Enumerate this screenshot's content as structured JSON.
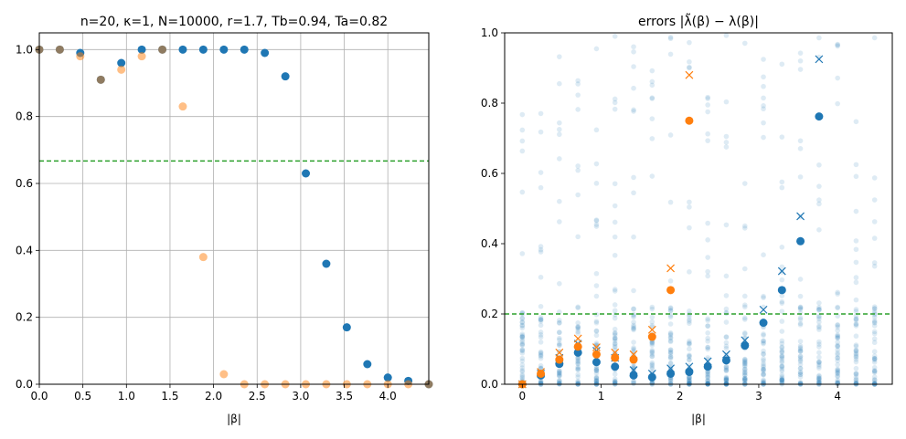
{
  "chart_data": [
    {
      "type": "scatter",
      "title": "n=20, κ=1, N=10000, r=1.7, Tb=0.94, Ta=0.82",
      "xlabel": "|β|",
      "ylabel": "",
      "xlim": [
        0,
        4.47
      ],
      "ylim": [
        0,
        1.05
      ],
      "xticks": [
        0.0,
        0.5,
        1.0,
        1.5,
        2.0,
        2.5,
        3.0,
        3.5,
        4.0
      ],
      "xtick_labels": [
        "0.0",
        "0.5",
        "1.0",
        "1.5",
        "2.0",
        "2.5",
        "3.0",
        "3.5",
        "4.0"
      ],
      "yticks": [
        0.0,
        0.2,
        0.4,
        0.6,
        0.8,
        1.0
      ],
      "ytick_labels": [
        "0.0",
        "0.2",
        "0.4",
        "0.6",
        "0.8",
        "1.0"
      ],
      "grid": true,
      "hline": {
        "y": 0.667,
        "color": "#2ca02c",
        "style": "dashed"
      },
      "series": [
        {
          "color": "#1f77b4",
          "marker": "circle",
          "x": [
            0,
            0.235,
            0.47,
            0.706,
            0.941,
            1.176,
            1.412,
            1.647,
            1.882,
            2.118,
            2.353,
            2.588,
            2.824,
            3.059,
            3.294,
            3.529,
            3.765,
            4.0,
            4.235,
            4.47
          ],
          "y": [
            1.0,
            1.0,
            0.99,
            0.91,
            0.96,
            1.0,
            1.0,
            1.0,
            1.0,
            1.0,
            1.0,
            0.99,
            0.92,
            0.63,
            0.36,
            0.17,
            0.06,
            0.02,
            0.01,
            0.0
          ]
        },
        {
          "color": "#ff7f0e",
          "marker": "circle",
          "opacity": 0.5,
          "x": [
            0,
            0.235,
            0.47,
            0.706,
            0.941,
            1.176,
            1.412,
            1.647,
            1.882,
            2.118,
            2.353,
            2.588,
            2.824,
            3.059,
            3.294,
            3.529,
            3.765,
            4.0,
            4.235,
            4.47
          ],
          "y": [
            1.0,
            1.0,
            0.98,
            0.91,
            0.94,
            0.98,
            1.0,
            0.83,
            0.38,
            0.03,
            0.0,
            0.0,
            0.0,
            0.0,
            0.0,
            0.0,
            0.0,
            0.0,
            0.0,
            0.0
          ]
        }
      ]
    },
    {
      "type": "scatter",
      "title": "errors |λ̃(β) − λ(β)|",
      "xlabel": "|β|",
      "ylabel": "",
      "xlim": [
        -0.224,
        4.694
      ],
      "ylim": [
        0,
        1.0
      ],
      "xticks": [
        0,
        1,
        2,
        3,
        4
      ],
      "xtick_labels": [
        "0",
        "1",
        "2",
        "3",
        "4"
      ],
      "yticks": [
        0.0,
        0.2,
        0.4,
        0.6,
        0.8,
        1.0
      ],
      "ytick_labels": [
        "0.0",
        "0.2",
        "0.4",
        "0.6",
        "0.8",
        "1.0"
      ],
      "grid": false,
      "hline": {
        "y": 0.2,
        "color": "#2ca02c",
        "style": "dashed"
      },
      "background_cloud": {
        "color": "#1f77b4",
        "opacity": 0.15,
        "marker": "circle"
      },
      "series": [
        {
          "color": "#1f77b4",
          "marker": "circle",
          "x": [
            0,
            0.235,
            0.47,
            0.706,
            0.941,
            1.176,
            1.412,
            1.647,
            1.882,
            2.118,
            2.353,
            2.588,
            2.824,
            3.059,
            3.294,
            3.529,
            3.765
          ],
          "y": [
            0.0,
            0.025,
            0.058,
            0.09,
            0.063,
            0.05,
            0.025,
            0.02,
            0.03,
            0.035,
            0.05,
            0.068,
            0.11,
            0.175,
            0.268,
            0.407,
            0.762
          ]
        },
        {
          "color": "#1f77b4",
          "marker": "x",
          "x": [
            0,
            0.235,
            0.47,
            0.706,
            0.941,
            1.176,
            1.412,
            1.647,
            1.882,
            2.118,
            2.353,
            2.588,
            2.824,
            3.059,
            3.294,
            3.529,
            3.765
          ],
          "y": [
            0.0,
            0.03,
            0.075,
            0.115,
            0.095,
            0.075,
            0.04,
            0.03,
            0.045,
            0.05,
            0.065,
            0.085,
            0.125,
            0.212,
            0.322,
            0.478,
            0.925
          ]
        },
        {
          "color": "#ff7f0e",
          "marker": "circle",
          "x": [
            0,
            0.235,
            0.47,
            0.706,
            0.941,
            1.176,
            1.412,
            1.647,
            1.882,
            2.118
          ],
          "y": [
            0.0,
            0.03,
            0.07,
            0.107,
            0.085,
            0.075,
            0.07,
            0.135,
            0.268,
            0.75
          ]
        },
        {
          "color": "#ff7f0e",
          "marker": "x",
          "x": [
            0,
            0.235,
            0.47,
            0.706,
            0.941,
            1.176,
            1.412,
            1.647,
            1.882,
            2.118
          ],
          "y": [
            0.0,
            0.035,
            0.09,
            0.13,
            0.105,
            0.09,
            0.085,
            0.155,
            0.33,
            0.88
          ]
        }
      ]
    }
  ]
}
